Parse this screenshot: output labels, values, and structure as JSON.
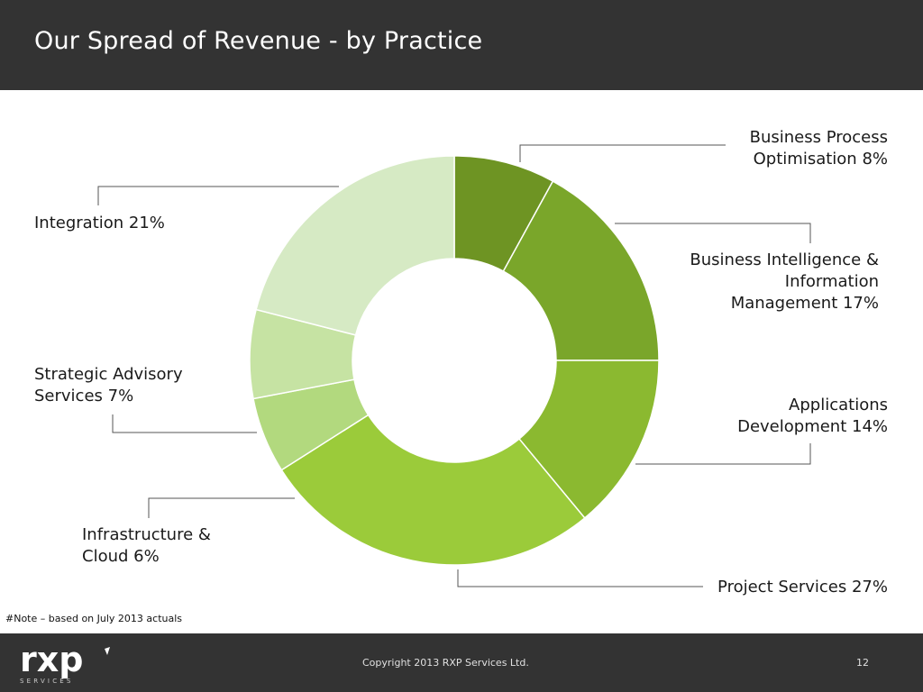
{
  "header": {
    "title": "Our Spread of Revenue - by Practice"
  },
  "chart_data": {
    "type": "pie",
    "variant": "donut",
    "unit": "%",
    "slices": [
      {
        "lines": [
          "Business Process",
          "Optimisation 8%"
        ],
        "value": 8,
        "color": "#6e9423"
      },
      {
        "lines": [
          "Business Intelligence &",
          "Information",
          "Management 17%"
        ],
        "value": 17,
        "color": "#7aa62a"
      },
      {
        "lines": [
          "Applications",
          "Development 14%"
        ],
        "value": 14,
        "color": "#8bb930"
      },
      {
        "lines": [
          "Project Services 27%"
        ],
        "value": 27,
        "color": "#9bcb3a"
      },
      {
        "lines": [
          "Infrastructure &",
          "Cloud 6%"
        ],
        "value": 6,
        "color": "#b2d97e"
      },
      {
        "lines": [
          "Strategic Advisory",
          "Services 7%"
        ],
        "value": 7,
        "color": "#c6e3a3"
      },
      {
        "lines": [
          "Integration 21%"
        ],
        "value": 21,
        "color": "#d6eac4"
      }
    ]
  },
  "note": "#Note – based on July 2013 actuals",
  "footer": {
    "logo_text": "rxp",
    "logo_subtext": "SERVICES",
    "copyright": "Copyright 2013 RXP Services Ltd.",
    "page_number": "12"
  }
}
